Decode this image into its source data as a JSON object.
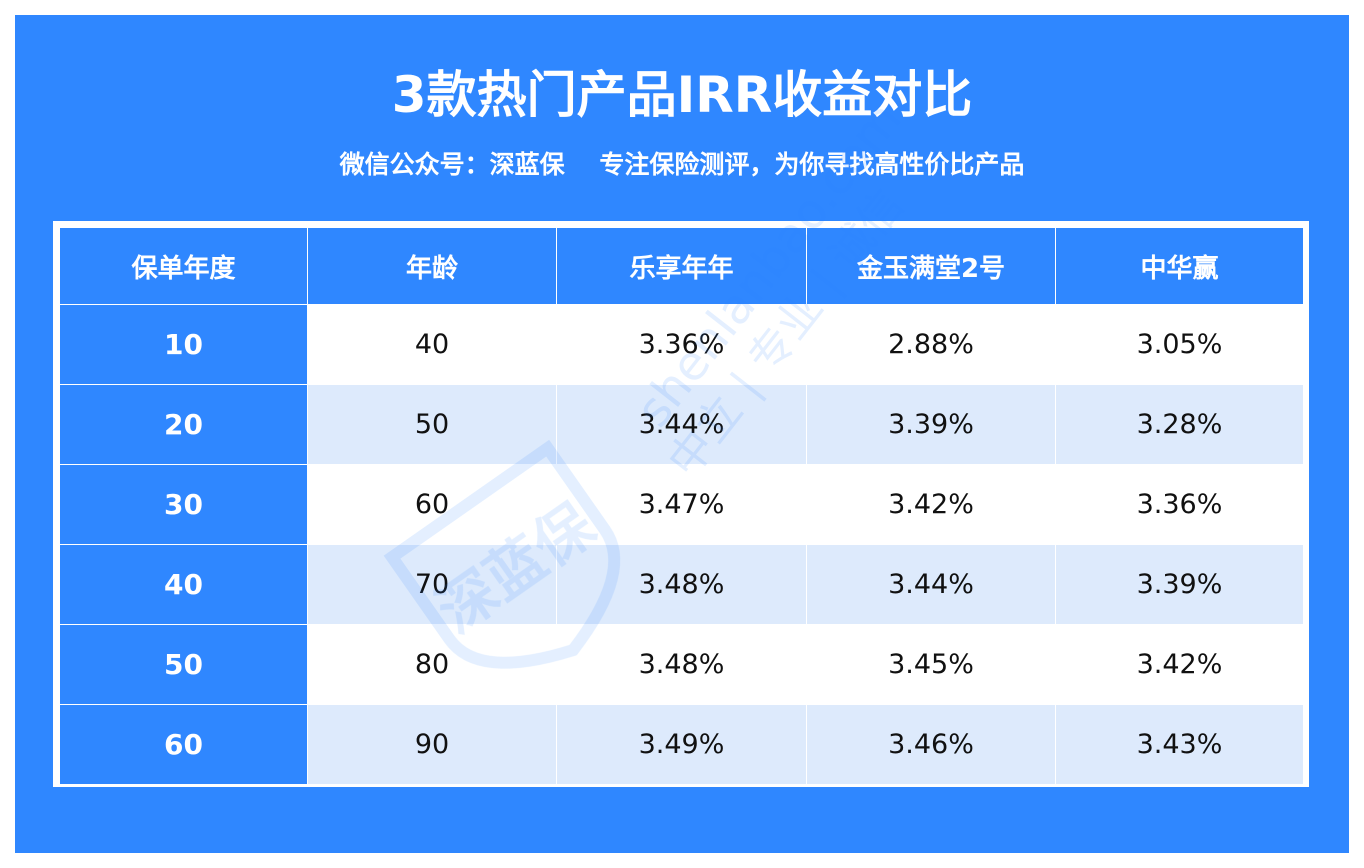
{
  "title": "3款热门产品IRR收益对比",
  "subtitle": "微信公众号：深蓝保    专注保险测评，为你寻找高性价比产品",
  "watermark": {
    "logo_text": "深蓝保",
    "url_text": "shenlanbao.com",
    "slogan_text": "中立 | 专业 | 诚信"
  },
  "colors": {
    "accent": "#2f87ff",
    "row_alt": "#ddeafc",
    "text": "#111111"
  },
  "chart_data": {
    "type": "table",
    "title": "3款热门产品IRR收益对比",
    "columns": [
      "保单年度",
      "年龄",
      "乐享年年",
      "金玉满堂2号",
      "中华赢"
    ],
    "rows": [
      [
        "10",
        "40",
        "3.36%",
        "2.88%",
        "3.05%"
      ],
      [
        "20",
        "50",
        "3.44%",
        "3.39%",
        "3.28%"
      ],
      [
        "30",
        "60",
        "3.47%",
        "3.42%",
        "3.36%"
      ],
      [
        "40",
        "70",
        "3.48%",
        "3.44%",
        "3.39%"
      ],
      [
        "50",
        "80",
        "3.48%",
        "3.45%",
        "3.42%"
      ],
      [
        "60",
        "90",
        "3.49%",
        "3.46%",
        "3.43%"
      ]
    ]
  }
}
